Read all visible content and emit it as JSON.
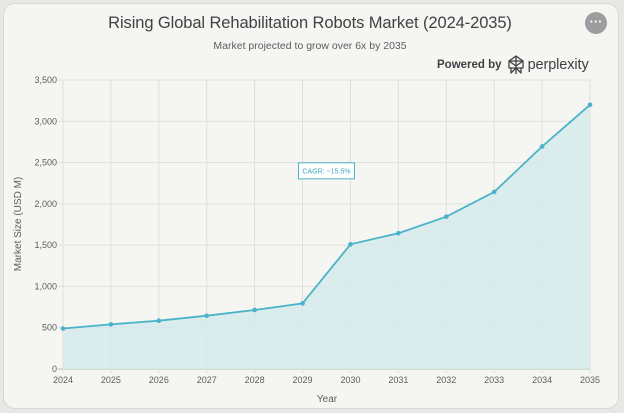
{
  "header": {
    "title": "Rising Global Rehabilitation Robots Market (2024-2035)",
    "subtitle": "Market projected to grow over 6x by 2035",
    "more_icon": "more-horizontal-icon",
    "powered_by_label": "Powered by",
    "brand": "perplexity",
    "brand_icon": "perplexity-logo-icon"
  },
  "chart_data": {
    "type": "area",
    "title": "Rising Global Rehabilitation Robots Market (2024-2035)",
    "subtitle": "Market projected to grow over 6x by 2035",
    "xlabel": "Year",
    "ylabel": "Market Size (USD M)",
    "x": [
      "2024",
      "2025",
      "2026",
      "2027",
      "2028",
      "2029",
      "2030",
      "2031",
      "2032",
      "2033",
      "2034",
      "2035"
    ],
    "series": [
      {
        "values": [
          490,
          540,
          585,
          645,
          715,
          795,
          1510,
          1645,
          1845,
          2145,
          2695,
          3200
        ]
      }
    ],
    "ylim": [
      0,
      3500
    ],
    "yticks": [
      0,
      500,
      1000,
      1500,
      2000,
      2500,
      3000,
      3500
    ],
    "ytick_labels": [
      "0",
      "500",
      "1,000",
      "1,500",
      "2,000",
      "2,500",
      "3,000",
      "3,500"
    ],
    "grid": true,
    "line_color": "#4bb3c9",
    "fill_color": "#d5eaeb",
    "annotation": {
      "text": "CAGR: ~15.5%",
      "x": "2030",
      "y": 2400
    }
  }
}
